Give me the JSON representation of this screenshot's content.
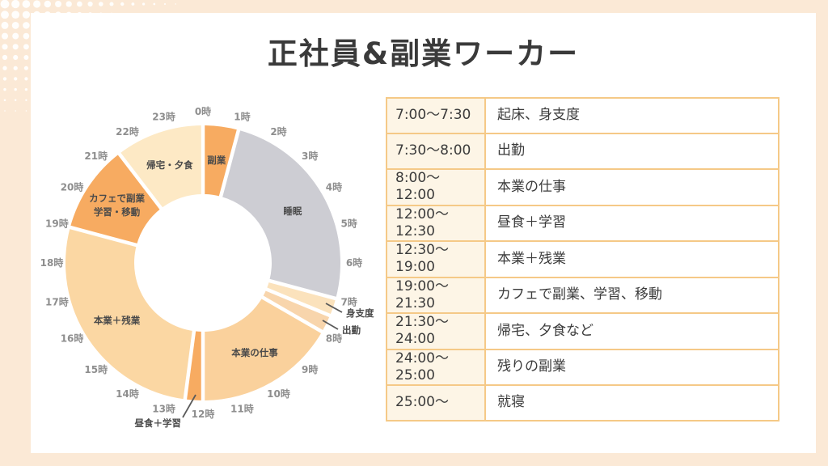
{
  "page": {
    "title": "正社員&副業ワーカー"
  },
  "theme": {
    "frame_bg": "#FBE9D6",
    "card_bg": "#FFFFFF",
    "table_border": "#F5C987",
    "time_cell_bg": "#FDF5E6",
    "text_dark": "#3B3B3B",
    "hour_label_color": "#8E8E8E",
    "segment_label_color": "#4A4A4A",
    "callout_line_color": "#5A5A5A",
    "dot_color": "#FFFFFF"
  },
  "chart_data": {
    "type": "pie",
    "subtype": "donut-24h-schedule",
    "title": "",
    "hours_total": 24,
    "hour_labels": [
      "0時",
      "1時",
      "2時",
      "3時",
      "4時",
      "5時",
      "6時",
      "7時",
      "8時",
      "9時",
      "10時",
      "11時",
      "12時",
      "13時",
      "14時",
      "15時",
      "16時",
      "17時",
      "18時",
      "19時",
      "20時",
      "21時",
      "22時",
      "23時"
    ],
    "segments": [
      {
        "label": "副業",
        "start": 0,
        "end": 1,
        "hours": 1,
        "color": "#F7AB61",
        "label_mode": "inside"
      },
      {
        "label": "睡眠",
        "start": 1,
        "end": 7,
        "hours": 6,
        "color": "#CDCDD3",
        "label_mode": "inside"
      },
      {
        "label": "身支度",
        "start": 7,
        "end": 7.5,
        "hours": 0.5,
        "color": "#FBE2BC",
        "label_mode": "callout"
      },
      {
        "label": "出勤",
        "start": 7.5,
        "end": 8,
        "hours": 0.5,
        "color": "#F8D5AC",
        "label_mode": "callout"
      },
      {
        "label": "本業の仕事",
        "start": 8,
        "end": 12,
        "hours": 4,
        "color": "#FAD19C",
        "label_mode": "inside"
      },
      {
        "label": "昼食＋学習",
        "start": 12,
        "end": 12.5,
        "hours": 0.5,
        "color": "#F7AB61",
        "label_mode": "callout"
      },
      {
        "label": "本業＋残業",
        "start": 12.5,
        "end": 19,
        "hours": 6.5,
        "color": "#FBD7A3",
        "label_mode": "inside"
      },
      {
        "label": "カフェで副業 学習・移動",
        "label_lines": [
          "カフェで副業",
          "学習・移動"
        ],
        "start": 19,
        "end": 21.5,
        "hours": 2.5,
        "color": "#F7AB61",
        "label_mode": "inside"
      },
      {
        "label": "帰宅・夕食",
        "start": 21.5,
        "end": 24,
        "hours": 2.5,
        "color": "#FDE9C5",
        "label_mode": "inside"
      }
    ]
  },
  "table": {
    "rows": [
      {
        "time": "7:00〜7:30",
        "activity": "起床、身支度"
      },
      {
        "time": "7:30〜8:00",
        "activity": "出勤"
      },
      {
        "time": "8:00〜12:00",
        "activity": "本業の仕事"
      },
      {
        "time": "12:00〜12:30",
        "activity": "昼食＋学習"
      },
      {
        "time": "12:30〜19:00",
        "activity": "本業＋残業"
      },
      {
        "time": "19:00〜21:30",
        "activity": "カフェで副業、学習、移動"
      },
      {
        "time": "21:30〜24:00",
        "activity": "帰宅、夕食など"
      },
      {
        "time": "24:00〜25:00",
        "activity": "残りの副業"
      },
      {
        "time": "25:00〜",
        "activity": "就寝"
      }
    ]
  }
}
